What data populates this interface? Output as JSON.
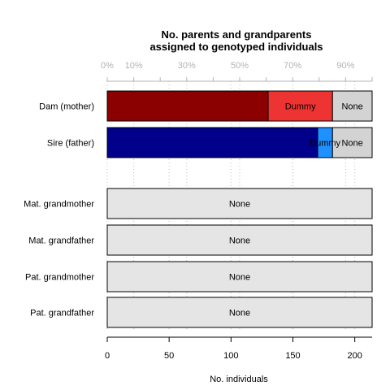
{
  "chart_data": {
    "type": "bar",
    "orientation": "horizontal",
    "stacked": true,
    "title": "No. parents and grandparents\nassigned to genotyped individuals",
    "xlabel": "No. individuals",
    "ylabel": "",
    "xlim": [
      0,
      214
    ],
    "total": 214,
    "x_ticks": [
      0,
      50,
      100,
      150,
      200
    ],
    "pct_ticks": [
      0,
      10,
      30,
      50,
      70,
      90
    ],
    "pct_tick_labels": [
      "0%",
      "10%",
      "30%",
      "50%",
      "70%",
      "90%"
    ],
    "grid": true,
    "rows": [
      {
        "label": "Dam (mother)",
        "segments": [
          {
            "value": 130,
            "color": "#8b0000",
            "label": ""
          },
          {
            "value": 52,
            "color": "#ee3333",
            "label": "Dummy"
          },
          {
            "value": 32,
            "color": "#d3d3d3",
            "label": "None"
          }
        ]
      },
      {
        "label": "Sire (father)",
        "segments": [
          {
            "value": 170,
            "color": "#00008b",
            "label": ""
          },
          {
            "value": 12,
            "color": "#1e90ff",
            "label": "Dummy"
          },
          {
            "value": 32,
            "color": "#d3d3d3",
            "label": "None"
          }
        ]
      },
      {
        "label": "Mat. grandmother",
        "segments": [
          {
            "value": 214,
            "color": "#e5e5e5",
            "label": "None"
          }
        ]
      },
      {
        "label": "Mat. grandfather",
        "segments": [
          {
            "value": 214,
            "color": "#e5e5e5",
            "label": "None"
          }
        ]
      },
      {
        "label": "Pat. grandmother",
        "segments": [
          {
            "value": 214,
            "color": "#e5e5e5",
            "label": "None"
          }
        ]
      },
      {
        "label": "Pat. grandfather",
        "segments": [
          {
            "value": 214,
            "color": "#e5e5e5",
            "label": "None"
          }
        ]
      }
    ]
  }
}
